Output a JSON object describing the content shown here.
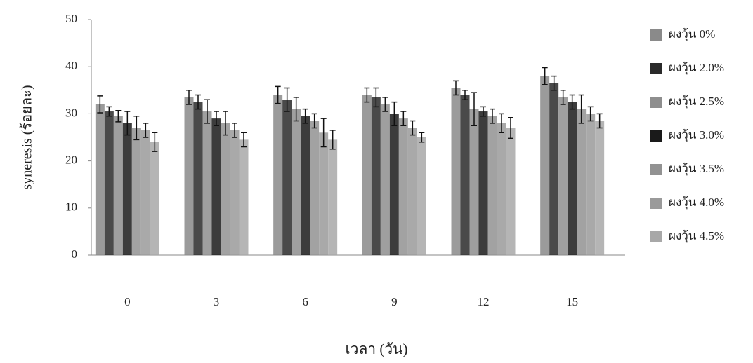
{
  "chart_data": {
    "type": "bar",
    "xlabel": "เวลา (วัน)",
    "ylabel": "syneresis (ร้อยละ)",
    "categories": [
      "0",
      "3",
      "6",
      "9",
      "12",
      "15"
    ],
    "ylim": [
      0,
      50
    ],
    "yticks": [
      0,
      10,
      20,
      30,
      40,
      50
    ],
    "legend": "right",
    "series": [
      {
        "name": "ผงวุ้น 0%",
        "color": "#8a8a8a",
        "values": [
          32,
          33.5,
          34,
          34,
          35.5,
          38
        ],
        "errors": [
          1.8,
          1.5,
          1.8,
          1.5,
          1.5,
          1.8
        ]
      },
      {
        "name": "ผงวุ้น 2.0%",
        "color": "#2a2a2a",
        "values": [
          30.5,
          32.5,
          33,
          33.5,
          34,
          36.5
        ],
        "errors": [
          1,
          1.5,
          2.5,
          2,
          1,
          1.5
        ]
      },
      {
        "name": "ผงวุ้น 2.5%",
        "color": "#8e8e8e",
        "values": [
          29.5,
          30.5,
          31,
          32,
          31,
          33.5
        ],
        "errors": [
          1.2,
          2.5,
          2.5,
          1.5,
          3.5,
          1.5
        ]
      },
      {
        "name": "ผงวุ้น 3.0%",
        "color": "#1a1a1a",
        "values": [
          28,
          29,
          29.5,
          30,
          30.5,
          32.5
        ],
        "errors": [
          2.5,
          1.5,
          1.5,
          2.5,
          1,
          1.5
        ]
      },
      {
        "name": "ผงวุ้น 3.5%",
        "color": "#929292",
        "values": [
          27,
          28,
          28.5,
          29,
          29.5,
          31
        ],
        "errors": [
          2.5,
          2.5,
          1.5,
          1.5,
          1.5,
          3
        ]
      },
      {
        "name": "ผงวุ้น 4.0%",
        "color": "#9a9a9a",
        "values": [
          26.5,
          26.5,
          26,
          27,
          28,
          30
        ],
        "errors": [
          1.5,
          1.5,
          3,
          1.5,
          2,
          1.5
        ]
      },
      {
        "name": "ผงวุ้น 4.5%",
        "color": "#a8a8a8",
        "values": [
          24,
          24.5,
          24.5,
          25,
          27,
          28.5
        ],
        "errors": [
          2,
          1.5,
          2,
          1,
          2.2,
          1.5
        ]
      }
    ]
  }
}
